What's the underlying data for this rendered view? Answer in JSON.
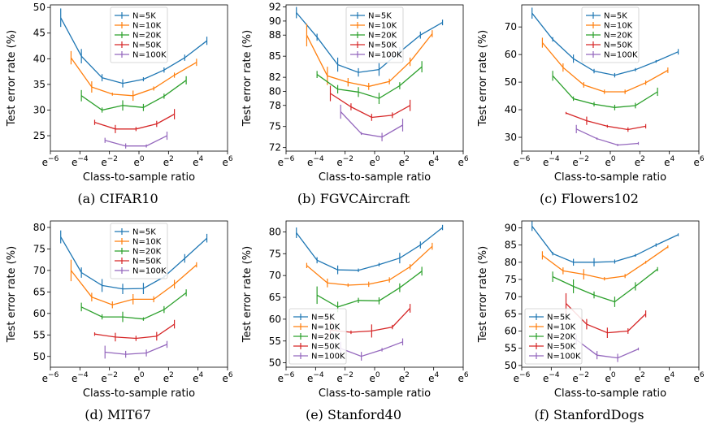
{
  "figure": {
    "xlabel": "Class-to-sample ratio",
    "ylabel": "Test error rate (%)",
    "x_tick_base": "e",
    "x_tick_exponents": [
      -6,
      -4,
      -2,
      0,
      2,
      4,
      6
    ],
    "legend_entries": [
      "N=5K",
      "N=10K",
      "N=20K",
      "N=50K",
      "N=100K"
    ],
    "series_colors": {
      "N=5K": "#1f77b4",
      "N=10K": "#ff7f0e",
      "N=20K": "#2ca02c",
      "N=50K": "#d62728",
      "N=100K": "#9467bd"
    }
  },
  "chart_data": [
    {
      "type": "line",
      "caption": "(a) CIFAR10",
      "legend_placement": "top-center",
      "xscale": "ln",
      "xlim_exp": [
        -6,
        6
      ],
      "ylim": [
        22,
        50.5
      ],
      "yticks": [
        25,
        30,
        35,
        40,
        45,
        50
      ],
      "series": [
        {
          "name": "N=5K",
          "x_exp": [
            -5.3,
            -3.9,
            -2.5,
            -1.1,
            0.3,
            1.7,
            3.1,
            4.6
          ],
          "y": [
            48,
            40.5,
            36.3,
            35.2,
            36,
            37.8,
            40.2,
            43.5
          ],
          "err": [
            1.8,
            1.4,
            0.7,
            0.8,
            0.4,
            0.5,
            0.6,
            0.8
          ]
        },
        {
          "name": "N=10K",
          "x_exp": [
            -4.6,
            -3.2,
            -1.8,
            -0.4,
            1.0,
            2.4,
            3.9
          ],
          "y": [
            40.2,
            34.5,
            33.1,
            32.8,
            34.2,
            36.8,
            39.3
          ],
          "err": [
            1.3,
            1.1,
            0.3,
            1.0,
            0.4,
            0.5,
            0.7
          ]
        },
        {
          "name": "N=20K",
          "x_exp": [
            -3.9,
            -2.5,
            -1.1,
            0.3,
            1.7,
            3.2
          ],
          "y": [
            32.8,
            30,
            30.9,
            30.5,
            32.7,
            35.8
          ],
          "err": [
            1.1,
            0.5,
            1.0,
            0.7,
            0.5,
            0.8
          ]
        },
        {
          "name": "N=50K",
          "x_exp": [
            -3.0,
            -1.6,
            -0.2,
            1.2,
            2.4
          ],
          "y": [
            27.6,
            26.3,
            26.3,
            27.3,
            29.2
          ],
          "err": [
            0.5,
            0.8,
            0.4,
            0.6,
            1.0
          ]
        },
        {
          "name": "N=100K",
          "x_exp": [
            -2.3,
            -0.9,
            0.5,
            1.9
          ],
          "y": [
            24.1,
            23,
            23,
            25
          ],
          "err": [
            0.5,
            0.5,
            0.3,
            0.8
          ]
        }
      ]
    },
    {
      "type": "line",
      "caption": "(b) FGVCAircraft",
      "legend_placement": "top-center",
      "xscale": "ln",
      "xlim_exp": [
        -6,
        6
      ],
      "ylim": [
        71.5,
        92.3
      ],
      "yticks": [
        72,
        75,
        78,
        80,
        82,
        85,
        88,
        90,
        92
      ],
      "series": [
        {
          "name": "N=5K",
          "x_exp": [
            -5.3,
            -3.9,
            -2.5,
            -1.1,
            0.3,
            1.7,
            3.1,
            4.6
          ],
          "y": [
            91.2,
            87.7,
            83.8,
            82.7,
            83.1,
            85.6,
            88,
            89.8
          ],
          "err": [
            0.8,
            0.5,
            1.0,
            0.6,
            0.9,
            0.7,
            0.5,
            0.4
          ]
        },
        {
          "name": "N=10K",
          "x_exp": [
            -4.6,
            -3.2,
            -1.8,
            -0.4,
            1.0,
            2.4,
            3.9
          ],
          "y": [
            88,
            82.2,
            81.3,
            80.7,
            81.4,
            84.2,
            88.2
          ],
          "err": [
            1.6,
            1.3,
            0.6,
            0.5,
            0.4,
            0.6,
            0.5
          ]
        },
        {
          "name": "N=20K",
          "x_exp": [
            -3.9,
            -2.5,
            -1.1,
            0.3,
            1.7,
            3.2
          ],
          "y": [
            82.4,
            80.3,
            79.9,
            79,
            80.8,
            83.5
          ],
          "err": [
            0.5,
            0.6,
            0.7,
            0.8,
            0.5,
            0.8
          ]
        },
        {
          "name": "N=50K",
          "x_exp": [
            -3.0,
            -1.6,
            -0.2,
            1.2,
            2.4
          ],
          "y": [
            79.7,
            77.8,
            76.3,
            76.6,
            78
          ],
          "err": [
            1.1,
            0.5,
            0.5,
            0.4,
            0.8
          ]
        },
        {
          "name": "N=100K",
          "x_exp": [
            -2.3,
            -0.9,
            0.5,
            1.9
          ],
          "y": [
            77.1,
            74,
            73.5,
            75.2
          ],
          "err": [
            1.0,
            0.2,
            0.6,
            0.9
          ]
        }
      ]
    },
    {
      "type": "line",
      "caption": "(c) Flowers102",
      "legend_placement": "top-center",
      "xscale": "ln",
      "xlim_exp": [
        -6,
        6
      ],
      "ylim": [
        25,
        78
      ],
      "yticks": [
        30,
        40,
        50,
        60,
        70
      ],
      "series": [
        {
          "name": "N=5K",
          "x_exp": [
            -5.3,
            -3.9,
            -2.5,
            -1.1,
            0.3,
            1.7,
            3.1,
            4.6
          ],
          "y": [
            75,
            65.5,
            58.5,
            54,
            52.5,
            54.5,
            57.5,
            61
          ],
          "err": [
            2.0,
            0.8,
            1.5,
            0.8,
            0.8,
            0.6,
            0.5,
            1.0
          ]
        },
        {
          "name": "N=10K",
          "x_exp": [
            -4.6,
            -3.2,
            -1.8,
            -0.4,
            1.0,
            2.4,
            3.9
          ],
          "y": [
            64.3,
            55.3,
            49,
            46.5,
            46.5,
            49.8,
            54.3
          ],
          "err": [
            1.8,
            1.5,
            1.0,
            0.8,
            0.8,
            0.8,
            1.0
          ]
        },
        {
          "name": "N=20K",
          "x_exp": [
            -3.9,
            -2.5,
            -1.1,
            0.3,
            1.7,
            3.2
          ],
          "y": [
            52.3,
            44,
            42,
            40.8,
            41.5,
            46.5
          ],
          "err": [
            1.8,
            0.8,
            0.8,
            1.0,
            1.0,
            1.5
          ]
        },
        {
          "name": "N=50K",
          "x_exp": [
            -3.0,
            -1.6,
            -0.2,
            1.2,
            2.4
          ],
          "y": [
            38.8,
            36,
            34,
            32.8,
            34
          ],
          "err": [
            0.4,
            1.5,
            0.5,
            0.8,
            0.8
          ]
        },
        {
          "name": "N=100K",
          "x_exp": [
            -2.3,
            -0.9,
            0.5,
            1.9
          ],
          "y": [
            33,
            29.5,
            27.2,
            27.8
          ],
          "err": [
            1.5,
            0.4,
            0.4,
            0.5
          ]
        }
      ]
    },
    {
      "type": "line",
      "caption": "(d) MIT67",
      "legend_placement": "top-center",
      "xscale": "ln",
      "xlim_exp": [
        -6,
        6
      ],
      "ylim": [
        47.5,
        81.5
      ],
      "yticks": [
        50,
        55,
        60,
        65,
        70,
        75,
        80
      ],
      "series": [
        {
          "name": "N=5K",
          "x_exp": [
            -5.3,
            -3.9,
            -2.5,
            -1.1,
            0.3,
            1.7,
            3.1,
            4.6
          ],
          "y": [
            77.8,
            69.5,
            66.5,
            65.7,
            65.8,
            68.5,
            72.8,
            77.5
          ],
          "err": [
            1.5,
            1.2,
            1.5,
            1.2,
            1.3,
            0.4,
            1.0,
            1.0
          ]
        },
        {
          "name": "N=10K",
          "x_exp": [
            -4.6,
            -3.2,
            -1.8,
            -0.4,
            1.0,
            2.4,
            3.9
          ],
          "y": [
            70,
            63.8,
            62,
            63.3,
            63.3,
            66.8,
            71.3
          ],
          "err": [
            2.5,
            1.0,
            0.8,
            1.2,
            0.7,
            1.0,
            0.6
          ]
        },
        {
          "name": "N=20K",
          "x_exp": [
            -3.9,
            -2.5,
            -1.1,
            0.3,
            1.7,
            3.2
          ],
          "y": [
            61.5,
            59.2,
            59.2,
            58.7,
            60.9,
            64.8
          ],
          "err": [
            1.0,
            0.6,
            1.2,
            0.4,
            0.8,
            0.8
          ]
        },
        {
          "name": "N=50K",
          "x_exp": [
            -3.0,
            -1.6,
            -0.2,
            1.2,
            2.4
          ],
          "y": [
            55.2,
            54.5,
            54.2,
            54.7,
            57.5
          ],
          "err": [
            0.4,
            1.0,
            0.6,
            1.0,
            1.0
          ]
        },
        {
          "name": "N=100K",
          "x_exp": [
            -2.3,
            -0.9,
            0.5,
            1.9
          ],
          "y": [
            51,
            50.5,
            50.8,
            52.8
          ],
          "err": [
            1.5,
            0.8,
            0.8,
            0.8
          ]
        }
      ]
    },
    {
      "type": "line",
      "caption": "(e) Stanford40",
      "legend_placement": "bottom-left",
      "xscale": "ln",
      "xlim_exp": [
        -6,
        6
      ],
      "ylim": [
        49,
        82.5
      ],
      "yticks": [
        50,
        55,
        60,
        65,
        70,
        75,
        80
      ],
      "series": [
        {
          "name": "N=5K",
          "x_exp": [
            -5.3,
            -3.9,
            -2.5,
            -1.1,
            0.3,
            1.7,
            3.1,
            4.6
          ],
          "y": [
            79.8,
            73.5,
            71.3,
            71.2,
            72.5,
            74,
            77,
            81
          ],
          "err": [
            1.2,
            0.7,
            1.0,
            0.4,
            0.4,
            1.2,
            0.8,
            0.6
          ]
        },
        {
          "name": "N=10K",
          "x_exp": [
            -4.6,
            -3.2,
            -1.8,
            -0.4,
            1.0,
            2.4,
            3.9
          ],
          "y": [
            72.3,
            68.3,
            67.8,
            68,
            69,
            72,
            76.7
          ],
          "err": [
            0.6,
            1.0,
            0.4,
            0.6,
            0.6,
            0.6,
            0.8
          ]
        },
        {
          "name": "N=20K",
          "x_exp": [
            -3.9,
            -2.5,
            -1.1,
            0.3,
            1.7,
            3.2
          ],
          "y": [
            65.5,
            62.8,
            64.3,
            64.2,
            67.2,
            71
          ],
          "err": [
            2.0,
            1.2,
            0.6,
            0.8,
            1.0,
            1.0
          ]
        },
        {
          "name": "N=50K",
          "x_exp": [
            -3.0,
            -1.6,
            -0.2,
            1.2,
            2.4
          ],
          "y": [
            57.5,
            57,
            57.3,
            58.2,
            62.5
          ],
          "err": [
            2.0,
            0.4,
            1.5,
            0.5,
            1.0
          ]
        },
        {
          "name": "N=100K",
          "x_exp": [
            -2.3,
            -0.9,
            0.5,
            1.9
          ],
          "y": [
            53.3,
            51.5,
            53,
            54.8
          ],
          "err": [
            1.5,
            1.0,
            0.4,
            0.8
          ]
        }
      ]
    },
    {
      "type": "line",
      "caption": "(f) StanfordDogs",
      "legend_placement": "bottom-left",
      "xscale": "ln",
      "xlim_exp": [
        -6,
        6
      ],
      "ylim": [
        49.5,
        92
      ],
      "yticks": [
        50,
        55,
        60,
        65,
        70,
        75,
        80,
        85,
        90
      ],
      "series": [
        {
          "name": "N=5K",
          "x_exp": [
            -5.3,
            -3.9,
            -2.5,
            -1.1,
            0.3,
            1.7,
            3.1,
            4.6
          ],
          "y": [
            90.5,
            82.5,
            80,
            80,
            80.2,
            82,
            85,
            88
          ],
          "err": [
            1.4,
            0.5,
            1.0,
            1.2,
            0.6,
            0.4,
            0.5,
            0.4
          ]
        },
        {
          "name": "N=10K",
          "x_exp": [
            -4.6,
            -3.2,
            -1.8,
            -0.4,
            1.0,
            2.4,
            3.9
          ],
          "y": [
            82,
            77.5,
            76.5,
            75.2,
            76,
            80,
            84.5
          ],
          "err": [
            1.2,
            1.0,
            1.5,
            0.5,
            0.6,
            0.4,
            0.4
          ]
        },
        {
          "name": "N=20K",
          "x_exp": [
            -3.9,
            -2.5,
            -1.1,
            0.3,
            1.7,
            3.2
          ],
          "y": [
            75.8,
            73,
            70.5,
            68.5,
            73,
            78
          ],
          "err": [
            1.5,
            2.0,
            1.0,
            1.5,
            1.2,
            0.6
          ]
        },
        {
          "name": "N=50K",
          "x_exp": [
            -3.0,
            -1.6,
            -0.2,
            1.2,
            2.4
          ],
          "y": [
            68,
            62,
            59.5,
            60,
            65
          ],
          "err": [
            3.0,
            1.5,
            1.5,
            0.8,
            1.0
          ]
        },
        {
          "name": "N=100K",
          "x_exp": [
            -2.3,
            -0.9,
            0.5,
            1.9
          ],
          "y": [
            57.5,
            53,
            52.2,
            54.8
          ],
          "err": [
            1.5,
            1.2,
            1.2,
            0.4
          ]
        }
      ]
    }
  ]
}
